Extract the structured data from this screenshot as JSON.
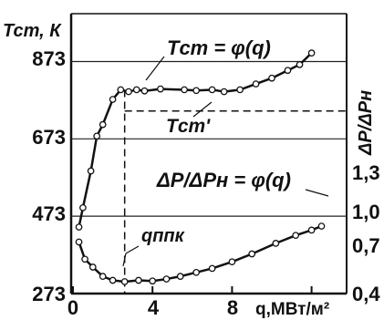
{
  "chart_data": {
    "type": "line",
    "x_axis": {
      "label": "q,МВт/м²",
      "ticks": [
        0,
        4,
        8
      ],
      "range": [
        0,
        12.5
      ]
    },
    "y_axis_left": {
      "label": "Тст, К",
      "ticks": [
        273,
        473,
        673,
        873
      ],
      "range": [
        273,
        953
      ]
    },
    "y_axis_right": {
      "label": "ΔP/ΔPн",
      "ticks": [
        "0,4",
        "0,7",
        "1,0",
        "1,3"
      ]
    },
    "annotations": {
      "tw_curve": "Tст = φ(q)",
      "tw_ref": "Tст'",
      "dp_curve": "ΔP/ΔPн = φ(q)",
      "q_dnb": "qппк"
    },
    "series": [
      {
        "axis": "left",
        "points": [
          [
            0.3,
            445
          ],
          [
            0.5,
            495
          ],
          [
            0.9,
            590
          ],
          [
            1.2,
            680
          ],
          [
            1.5,
            710
          ],
          [
            2.0,
            775
          ],
          [
            2.4,
            800
          ],
          [
            2.8,
            795
          ],
          [
            3.2,
            800
          ],
          [
            3.6,
            797
          ],
          [
            4.4,
            802
          ],
          [
            5.6,
            800
          ],
          [
            6.2,
            798
          ],
          [
            7.0,
            800
          ],
          [
            7.6,
            795
          ],
          [
            8.4,
            800
          ],
          [
            9.2,
            815
          ],
          [
            10.0,
            830
          ],
          [
            10.8,
            850
          ],
          [
            11.4,
            865
          ],
          [
            12.0,
            895
          ]
        ]
      },
      {
        "axis": "right",
        "points": [
          [
            0.3,
            0.79
          ],
          [
            0.6,
            0.66
          ],
          [
            1.0,
            0.6
          ],
          [
            1.5,
            0.53
          ],
          [
            2.0,
            0.5
          ],
          [
            2.6,
            0.49
          ],
          [
            3.3,
            0.5
          ],
          [
            4.0,
            0.495
          ],
          [
            4.7,
            0.51
          ],
          [
            5.4,
            0.53
          ],
          [
            6.2,
            0.56
          ],
          [
            7.0,
            0.59
          ],
          [
            8.0,
            0.64
          ],
          [
            9.0,
            0.7
          ],
          [
            10.2,
            0.78
          ],
          [
            11.2,
            0.84
          ],
          [
            12.0,
            0.88
          ],
          [
            12.5,
            0.91
          ]
        ]
      }
    ],
    "reference": {
      "tw_dashed_level": 745,
      "q_dnb_x": 2.6
    }
  }
}
